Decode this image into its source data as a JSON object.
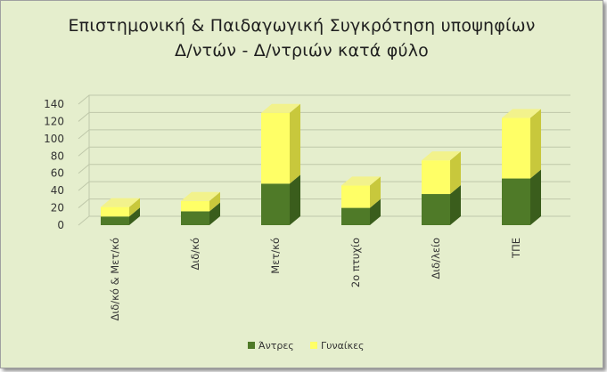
{
  "chart_data": {
    "type": "bar",
    "stacked": true,
    "style": "3d-column",
    "title_lines": [
      "Επιστημονική & Παιδαγωγική Συγκρότηση υποψηφίων",
      "Δ/ντών - Δ/ντριών κατά φύλο"
    ],
    "categories": [
      "Διδ/κό & Μετ/κό",
      "Διδ/κό",
      "Μετ/κό",
      "2ο πτυχίο",
      "Διδ/λείο",
      "ΤΠΕ"
    ],
    "series": [
      {
        "name": "Άντρες",
        "values": [
          10,
          16,
          48,
          20,
          36,
          54
        ],
        "color": "#4f7a28",
        "top_color": "#6b9a35",
        "side_color": "#3a5d1c"
      },
      {
        "name": "Γυναίκες",
        "values": [
          11,
          12,
          82,
          26,
          39,
          70
        ],
        "color": "#ffff66",
        "top_color": "#f2f28c",
        "side_color": "#c8c83c"
      }
    ],
    "ylim": [
      0,
      140
    ],
    "yticks": [
      0,
      20,
      40,
      60,
      80,
      100,
      120,
      140
    ],
    "grid": true,
    "legend_position": "bottom",
    "xlabel": "",
    "ylabel": ""
  }
}
